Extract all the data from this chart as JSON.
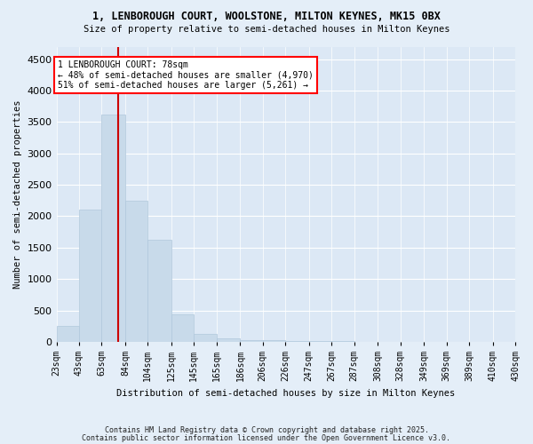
{
  "title1": "1, LENBOROUGH COURT, WOOLSTONE, MILTON KEYNES, MK15 0BX",
  "title2": "Size of property relative to semi-detached houses in Milton Keynes",
  "xlabel": "Distribution of semi-detached houses by size in Milton Keynes",
  "ylabel": "Number of semi-detached properties",
  "bar_color": "#c8daea",
  "bar_edge_color": "#b0c8dc",
  "annotation_title": "1 LENBOROUGH COURT: 78sqm",
  "annotation_line1": "← 48% of semi-detached houses are smaller (4,970)",
  "annotation_line2": "51% of semi-detached houses are larger (5,261) →",
  "property_line_color": "#cc0000",
  "property_sqm": 78,
  "bin_edges": [
    23,
    43,
    63,
    84,
    104,
    125,
    145,
    165,
    186,
    206,
    226,
    247,
    267,
    287,
    308,
    328,
    349,
    369,
    389,
    410,
    430
  ],
  "bin_labels": [
    "23sqm",
    "43sqm",
    "63sqm",
    "84sqm",
    "104sqm",
    "125sqm",
    "145sqm",
    "165sqm",
    "186sqm",
    "206sqm",
    "226sqm",
    "247sqm",
    "267sqm",
    "287sqm",
    "308sqm",
    "328sqm",
    "349sqm",
    "369sqm",
    "389sqm",
    "410sqm",
    "430sqm"
  ],
  "counts": [
    250,
    2100,
    3620,
    2240,
    1620,
    440,
    120,
    50,
    30,
    20,
    15,
    10,
    8,
    5,
    4,
    3,
    2,
    2,
    1,
    1
  ],
  "ylim": [
    0,
    4700
  ],
  "yticks": [
    0,
    500,
    1000,
    1500,
    2000,
    2500,
    3000,
    3500,
    4000,
    4500
  ],
  "footnote1": "Contains HM Land Registry data © Crown copyright and database right 2025.",
  "footnote2": "Contains public sector information licensed under the Open Government Licence v3.0.",
  "bg_color": "#e4eef8",
  "plot_bg_color": "#dce8f5"
}
